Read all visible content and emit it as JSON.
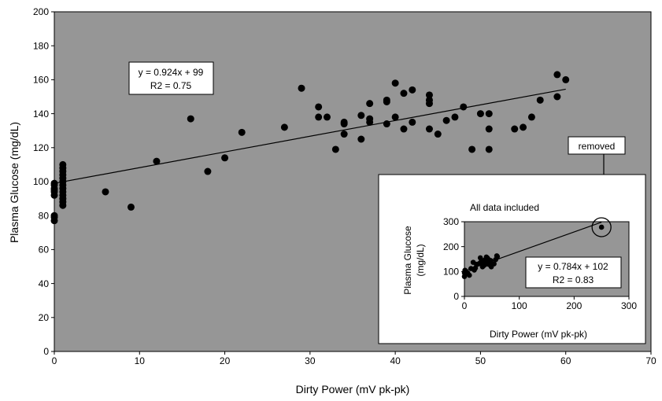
{
  "chart_data": [
    {
      "type": "scatter",
      "xlabel": "Dirty Power (mV pk-pk)",
      "ylabel": "Plasma Glucose (mg/dL)",
      "xlim": [
        0,
        70
      ],
      "ylim": [
        0,
        200
      ],
      "xticks": [
        0,
        10,
        20,
        30,
        40,
        50,
        60,
        70
      ],
      "yticks": [
        0,
        20,
        40,
        60,
        80,
        100,
        120,
        140,
        160,
        180,
        200
      ],
      "grid": false,
      "plot_background": "#969696",
      "marker_color": "#000000",
      "trendline": {
        "slope": 0.924,
        "intercept": 99,
        "x_range": [
          0,
          60
        ]
      },
      "equation_label": {
        "line1": "y = 0.924x + 99",
        "line2": "R2 = 0.75"
      },
      "points": [
        [
          0,
          77
        ],
        [
          0,
          79
        ],
        [
          0,
          80
        ],
        [
          0,
          92
        ],
        [
          0,
          94
        ],
        [
          0,
          95
        ],
        [
          0,
          96
        ],
        [
          0,
          98
        ],
        [
          0,
          99
        ],
        [
          1,
          86
        ],
        [
          1,
          88
        ],
        [
          1,
          90
        ],
        [
          1,
          92
        ],
        [
          1,
          94
        ],
        [
          1,
          96
        ],
        [
          1,
          98
        ],
        [
          1,
          100
        ],
        [
          1,
          102
        ],
        [
          1,
          104
        ],
        [
          1,
          106
        ],
        [
          1,
          108
        ],
        [
          1,
          110
        ],
        [
          6,
          94
        ],
        [
          9,
          85
        ],
        [
          12,
          112
        ],
        [
          16,
          137
        ],
        [
          18,
          106
        ],
        [
          20,
          114
        ],
        [
          22,
          129
        ],
        [
          27,
          132
        ],
        [
          29,
          155
        ],
        [
          31,
          144
        ],
        [
          31,
          138
        ],
        [
          32,
          138
        ],
        [
          33,
          119
        ],
        [
          34,
          128
        ],
        [
          34,
          134
        ],
        [
          34,
          135
        ],
        [
          36,
          125
        ],
        [
          36,
          139
        ],
        [
          37,
          135
        ],
        [
          37,
          137
        ],
        [
          37,
          146
        ],
        [
          39,
          134
        ],
        [
          39,
          147
        ],
        [
          39,
          148
        ],
        [
          40,
          158
        ],
        [
          40,
          138
        ],
        [
          41,
          131
        ],
        [
          41,
          152
        ],
        [
          42,
          135
        ],
        [
          42,
          154
        ],
        [
          44,
          131
        ],
        [
          44,
          146
        ],
        [
          44,
          148
        ],
        [
          44,
          151
        ],
        [
          45,
          128
        ],
        [
          46,
          136
        ],
        [
          47,
          138
        ],
        [
          48,
          144
        ],
        [
          49,
          119
        ],
        [
          50,
          140
        ],
        [
          51,
          140
        ],
        [
          51,
          131
        ],
        [
          51,
          119
        ],
        [
          54,
          131
        ],
        [
          55,
          132
        ],
        [
          56,
          138
        ],
        [
          57,
          148
        ],
        [
          59,
          163
        ],
        [
          59,
          150
        ],
        [
          60,
          160
        ]
      ]
    },
    {
      "type": "scatter",
      "title": "All data included",
      "xlabel": "Dirty Power (mV pk-pk)",
      "ylabel_line1": "Plasma Glucose",
      "ylabel_line2": "(mg/dL)",
      "xlim": [
        0,
        300
      ],
      "ylim": [
        0,
        300
      ],
      "xticks": [
        0,
        100,
        200,
        300
      ],
      "yticks": [
        0,
        100,
        200,
        300
      ],
      "plot_background": "#969696",
      "marker_color": "#000000",
      "trendline": {
        "slope": 0.784,
        "intercept": 102,
        "x_range": [
          0,
          250
        ]
      },
      "equation_label": {
        "line1": "y = 0.784x + 102",
        "line2": "R2 = 0.83"
      },
      "points": [
        [
          0,
          80
        ],
        [
          0,
          95
        ],
        [
          1,
          88
        ],
        [
          1,
          105
        ],
        [
          6,
          94
        ],
        [
          9,
          85
        ],
        [
          12,
          112
        ],
        [
          16,
          137
        ],
        [
          18,
          106
        ],
        [
          20,
          114
        ],
        [
          22,
          129
        ],
        [
          27,
          132
        ],
        [
          29,
          155
        ],
        [
          31,
          144
        ],
        [
          33,
          119
        ],
        [
          34,
          135
        ],
        [
          36,
          125
        ],
        [
          37,
          146
        ],
        [
          39,
          148
        ],
        [
          40,
          158
        ],
        [
          41,
          131
        ],
        [
          42,
          154
        ],
        [
          44,
          148
        ],
        [
          45,
          128
        ],
        [
          48,
          144
        ],
        [
          49,
          119
        ],
        [
          51,
          131
        ],
        [
          54,
          131
        ],
        [
          57,
          148
        ],
        [
          59,
          163
        ],
        [
          60,
          160
        ],
        [
          250,
          278
        ]
      ],
      "outlier": {
        "x": 250,
        "y": 278
      }
    }
  ],
  "annotations": {
    "removed_label": "removed"
  }
}
